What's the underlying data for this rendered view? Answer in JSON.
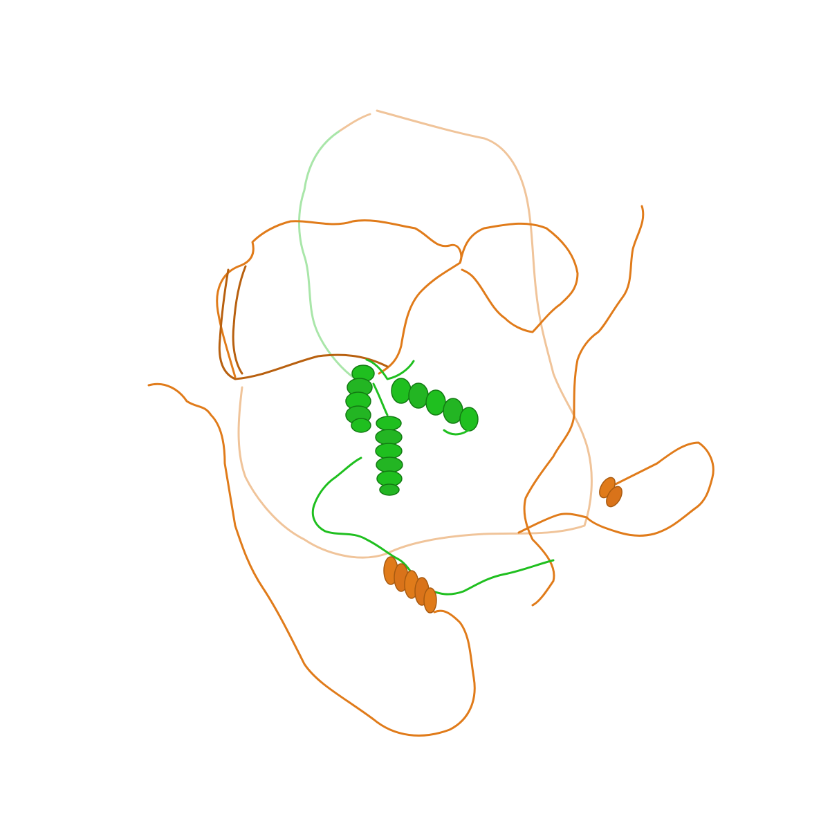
{
  "scene": {
    "background_color": "#ffffff",
    "chains": [
      {
        "name": "chain-orange",
        "color": "#e07b1a",
        "secondary_structure": [
          "coil",
          "helix",
          "helix"
        ]
      },
      {
        "name": "chain-green",
        "color": "#1fbf1f",
        "secondary_structure": [
          "coil",
          "helix",
          "helix",
          "helix"
        ]
      }
    ],
    "helix_counts": {
      "green": 3,
      "orange": 2
    }
  }
}
